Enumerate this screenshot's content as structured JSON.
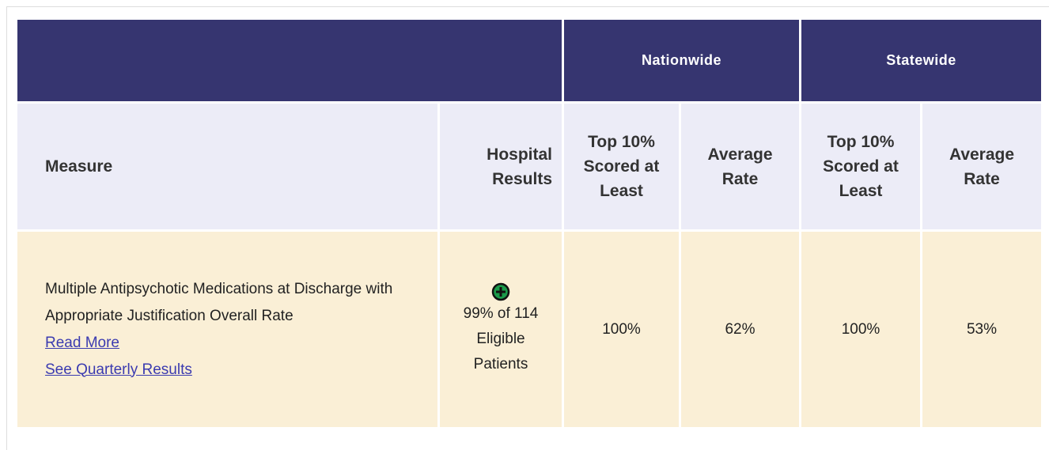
{
  "header": {
    "groups": [
      "Nationwide",
      "Statewide"
    ]
  },
  "columns": [
    "Measure",
    "Hospital Results",
    "Top 10% Scored at Least",
    "Average Rate",
    "Top 10% Scored at Least",
    "Average Rate"
  ],
  "row": {
    "measure": "Multiple Antipsychotic Medications at Discharge with Appropriate Justification Overall Rate",
    "links": [
      "Read More",
      "See Quarterly Results"
    ],
    "hospital_result": "99% of 114 Eligible Patients",
    "values": [
      "100%",
      "62%",
      "100%",
      "53%"
    ]
  }
}
